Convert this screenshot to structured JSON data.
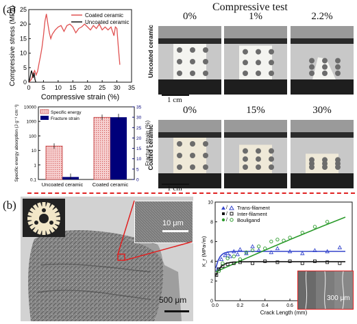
{
  "panel_a_label": "(a)",
  "panel_b_label": "(b)",
  "compressive_test_title": "Compressive test",
  "uncoated_row_label": "Uncoated ceramic",
  "coated_row_label": "Coated ceramic",
  "uncoated_strains": [
    "0%",
    "1%",
    "2.2%"
  ],
  "coated_strains": [
    "0%",
    "15%",
    "30%"
  ],
  "scalebar_label": "1 cm",
  "sem": {
    "inset_scale": "10 μm",
    "main_scale": "500 μm"
  },
  "crack_inset_scale": "300 μm",
  "colors": {
    "coated": "#e05050",
    "uncoated": "#111111",
    "blue": "#00007a",
    "dashed_divider": "#e02020",
    "green": "#2a9a2a",
    "trans": "#3344cc"
  },
  "chart_data": [
    {
      "type": "line",
      "xlabel": "Compressive strain (%)",
      "ylabel": "Compressive stress (MPa)",
      "xlim": [
        0,
        35
      ],
      "ylim": [
        0,
        25
      ],
      "xticks": [
        "0",
        "5",
        "10",
        "15",
        "20",
        "25",
        "30",
        "35"
      ],
      "yticks": [
        "0",
        "5",
        "10",
        "15",
        "20",
        "25"
      ],
      "legend_position": "top-right",
      "series": [
        {
          "name": "Coated ceramic",
          "color": "#e05050",
          "x": [
            0,
            0.5,
            1,
            1.5,
            2,
            2.5,
            3,
            3.5,
            4,
            4.5,
            5,
            5.5,
            6,
            6.5,
            7,
            7.5,
            8,
            9,
            10,
            11,
            12,
            13,
            14,
            15,
            16,
            17,
            18,
            19,
            20,
            21,
            22,
            23,
            24,
            25,
            26,
            27,
            28,
            29,
            29.5,
            30,
            30.5,
            31
          ],
          "y": [
            0,
            0.5,
            1.2,
            3,
            4,
            2.5,
            3.8,
            6.5,
            9,
            12,
            16,
            21,
            23.5,
            20,
            17,
            15,
            16.5,
            18,
            19,
            19.5,
            17.5,
            19.5,
            20,
            19,
            17,
            18.5,
            19,
            20,
            19,
            18,
            19.5,
            18.5,
            20,
            18,
            19,
            18,
            19,
            16,
            19,
            18.5,
            12,
            6
          ]
        },
        {
          "name": "Uncoated ceramic",
          "color": "#111111",
          "x": [
            0,
            0.3,
            0.6,
            0.9,
            1.2,
            1.5,
            1.8,
            2.1,
            2.4
          ],
          "y": [
            0,
            1,
            2.5,
            4,
            3,
            1.5,
            3.2,
            1,
            0
          ]
        }
      ]
    },
    {
      "type": "bar",
      "categories": [
        "Uncoated ceramic",
        "Coated ceramic"
      ],
      "ylabel_left": "Specific energy absorption (J g⁻¹ cm⁻¹)",
      "ylabel_right": "Fracture strain (%)",
      "ylim_left": [
        0.1,
        10000
      ],
      "yticks_left": [
        "0.1",
        "1",
        "10",
        "100",
        "1000",
        "10000"
      ],
      "ylim_right": [
        0,
        35
      ],
      "yticks_right": [
        "0",
        "5",
        "10",
        "15",
        "20",
        "25",
        "30",
        "35"
      ],
      "legend_position": "top-left",
      "series": [
        {
          "name": "Specific energy",
          "axis": "left",
          "values": [
            20,
            1900
          ]
        },
        {
          "name": "Fracture strain",
          "axis": "right",
          "values": [
            1.2,
            30
          ]
        }
      ]
    },
    {
      "type": "scatter",
      "xlabel": "Crack Length (mm)",
      "ylabel": "K_r (MPa√m)",
      "xlim": [
        0,
        1.1
      ],
      "ylim": [
        0,
        10
      ],
      "xticks": [
        "0.0",
        "0.2",
        "0.4",
        "0.6",
        "0.8",
        "1.0"
      ],
      "yticks": [
        "0",
        "2",
        "4",
        "6",
        "8",
        "10"
      ],
      "legend_position": "top-left",
      "legend_entries": [
        "Trans-filament",
        "Inter-filament",
        "Bouligand"
      ],
      "series": [
        {
          "name": "Trans-filament",
          "color": "#3344cc",
          "x": [
            0.02,
            0.05,
            0.08,
            0.1,
            0.12,
            0.15,
            0.18,
            0.2,
            0.25,
            0.3,
            0.35,
            0.45,
            0.5,
            0.6,
            0.7,
            0.8,
            0.9,
            1.0
          ],
          "y": [
            3.2,
            4.2,
            4.6,
            4.8,
            4.5,
            5.0,
            4.7,
            5.2,
            4.8,
            5.5,
            5.1,
            4.9,
            5.3,
            5.0,
            4.8,
            5.1,
            5.0,
            5.4
          ]
        },
        {
          "name": "Inter-filament",
          "color": "#111111",
          "x": [
            0.01,
            0.03,
            0.06,
            0.1,
            0.15,
            0.2,
            0.3,
            0.4,
            0.5,
            0.6,
            0.7,
            0.8,
            0.9,
            1.0
          ],
          "y": [
            2.6,
            3.2,
            3.5,
            3.7,
            3.8,
            3.9,
            3.8,
            4.0,
            3.9,
            4.0,
            3.8,
            4.0,
            3.9,
            3.8
          ]
        },
        {
          "name": "Bouligand",
          "color": "#2a9a2a",
          "x": [
            0.03,
            0.06,
            0.1,
            0.15,
            0.2,
            0.25,
            0.3,
            0.35,
            0.4,
            0.45,
            0.5,
            0.55,
            0.6,
            0.7,
            0.8,
            0.9
          ],
          "y": [
            3.0,
            3.8,
            4.3,
            4.5,
            4.2,
            4.9,
            5.1,
            5.5,
            5.3,
            6.0,
            6.2,
            6.1,
            6.4,
            6.9,
            7.5,
            8.0
          ]
        }
      ]
    }
  ]
}
